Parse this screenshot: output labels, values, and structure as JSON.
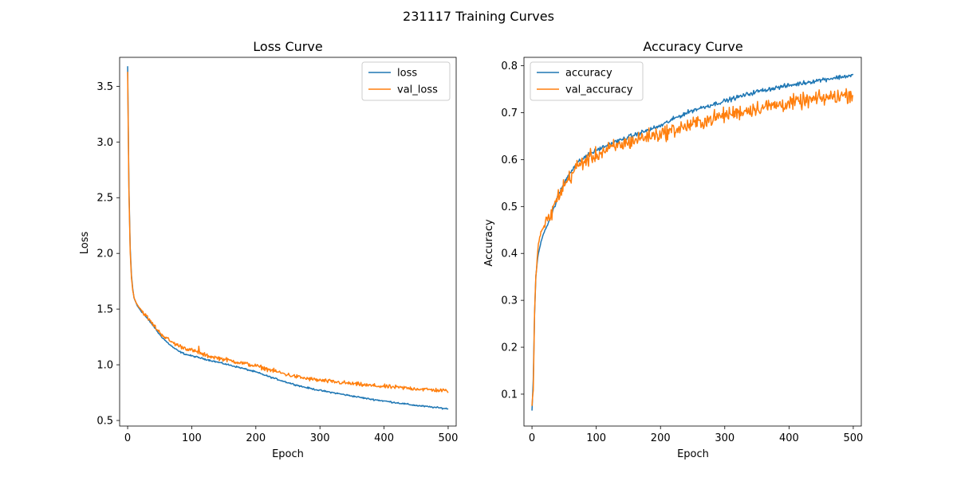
{
  "figure": {
    "suptitle": "231117 Training Curves"
  },
  "chart_data": [
    {
      "type": "line",
      "title": "Loss Curve",
      "xlabel": "Epoch",
      "ylabel": "Loss",
      "xlim": [
        -12.5,
        512.5
      ],
      "ylim": [
        0.45,
        3.76
      ],
      "xticks": [
        0,
        100,
        200,
        300,
        400,
        500
      ],
      "yticks": [
        0.5,
        1.0,
        1.5,
        2.0,
        2.5,
        3.0,
        3.5
      ],
      "grid": false,
      "legend": "upper-right",
      "series": [
        {
          "name": "loss",
          "color": "#1f77b4",
          "x": [
            0,
            2,
            4,
            6,
            8,
            10,
            15,
            20,
            30,
            40,
            50,
            60,
            70,
            80,
            90,
            100,
            125,
            150,
            175,
            200,
            225,
            250,
            275,
            300,
            325,
            350,
            375,
            400,
            425,
            450,
            475,
            500
          ],
          "y": [
            3.68,
            2.6,
            2.05,
            1.8,
            1.68,
            1.6,
            1.53,
            1.49,
            1.42,
            1.35,
            1.27,
            1.21,
            1.16,
            1.12,
            1.095,
            1.08,
            1.045,
            1.01,
            0.975,
            0.935,
            0.885,
            0.84,
            0.8,
            0.77,
            0.745,
            0.72,
            0.695,
            0.675,
            0.655,
            0.635,
            0.62,
            0.605
          ],
          "noise": 0.006
        },
        {
          "name": "val_loss",
          "color": "#ff7f0e",
          "x": [
            0,
            2,
            4,
            6,
            8,
            10,
            15,
            20,
            30,
            40,
            50,
            60,
            70,
            80,
            90,
            100,
            110,
            111,
            113,
            125,
            150,
            175,
            200,
            225,
            250,
            275,
            300,
            325,
            350,
            375,
            400,
            425,
            450,
            475,
            500
          ],
          "y": [
            3.63,
            2.55,
            2.02,
            1.78,
            1.67,
            1.6,
            1.54,
            1.5,
            1.43,
            1.36,
            1.29,
            1.24,
            1.2,
            1.17,
            1.15,
            1.13,
            1.11,
            1.16,
            1.1,
            1.08,
            1.05,
            1.02,
            0.99,
            0.95,
            0.91,
            0.88,
            0.86,
            0.845,
            0.83,
            0.815,
            0.805,
            0.795,
            0.785,
            0.775,
            0.765
          ],
          "noise": 0.016
        }
      ]
    },
    {
      "type": "line",
      "title": "Accuracy Curve",
      "xlabel": "Epoch",
      "ylabel": "Accuracy",
      "xlim": [
        -12.5,
        512.5
      ],
      "ylim": [
        0.032,
        0.818
      ],
      "xticks": [
        0,
        100,
        200,
        300,
        400,
        500
      ],
      "yticks": [
        0.1,
        0.2,
        0.3,
        0.4,
        0.5,
        0.6,
        0.7,
        0.8
      ],
      "grid": false,
      "legend": "upper-left",
      "series": [
        {
          "name": "accuracy",
          "color": "#1f77b4",
          "x": [
            0,
            2,
            4,
            6,
            8,
            10,
            15,
            20,
            30,
            40,
            50,
            60,
            70,
            80,
            90,
            100,
            125,
            150,
            175,
            200,
            225,
            250,
            275,
            300,
            325,
            350,
            375,
            400,
            425,
            450,
            475,
            500
          ],
          "y": [
            0.065,
            0.13,
            0.27,
            0.35,
            0.38,
            0.4,
            0.43,
            0.45,
            0.48,
            0.52,
            0.55,
            0.575,
            0.592,
            0.603,
            0.612,
            0.62,
            0.635,
            0.648,
            0.66,
            0.672,
            0.69,
            0.705,
            0.715,
            0.725,
            0.735,
            0.745,
            0.752,
            0.758,
            0.764,
            0.77,
            0.775,
            0.78
          ],
          "noise": 0.004
        },
        {
          "name": "val_accuracy",
          "color": "#ff7f0e",
          "x": [
            0,
            2,
            4,
            6,
            8,
            10,
            15,
            20,
            30,
            40,
            50,
            60,
            70,
            80,
            90,
            100,
            125,
            150,
            175,
            200,
            225,
            250,
            275,
            300,
            325,
            350,
            375,
            400,
            425,
            450,
            475,
            500
          ],
          "y": [
            0.075,
            0.11,
            0.27,
            0.35,
            0.39,
            0.42,
            0.45,
            0.46,
            0.485,
            0.52,
            0.545,
            0.565,
            0.585,
            0.595,
            0.603,
            0.61,
            0.625,
            0.637,
            0.648,
            0.655,
            0.665,
            0.675,
            0.685,
            0.695,
            0.702,
            0.71,
            0.715,
            0.72,
            0.725,
            0.73,
            0.735,
            0.74
          ],
          "noise": 0.014
        }
      ]
    }
  ]
}
